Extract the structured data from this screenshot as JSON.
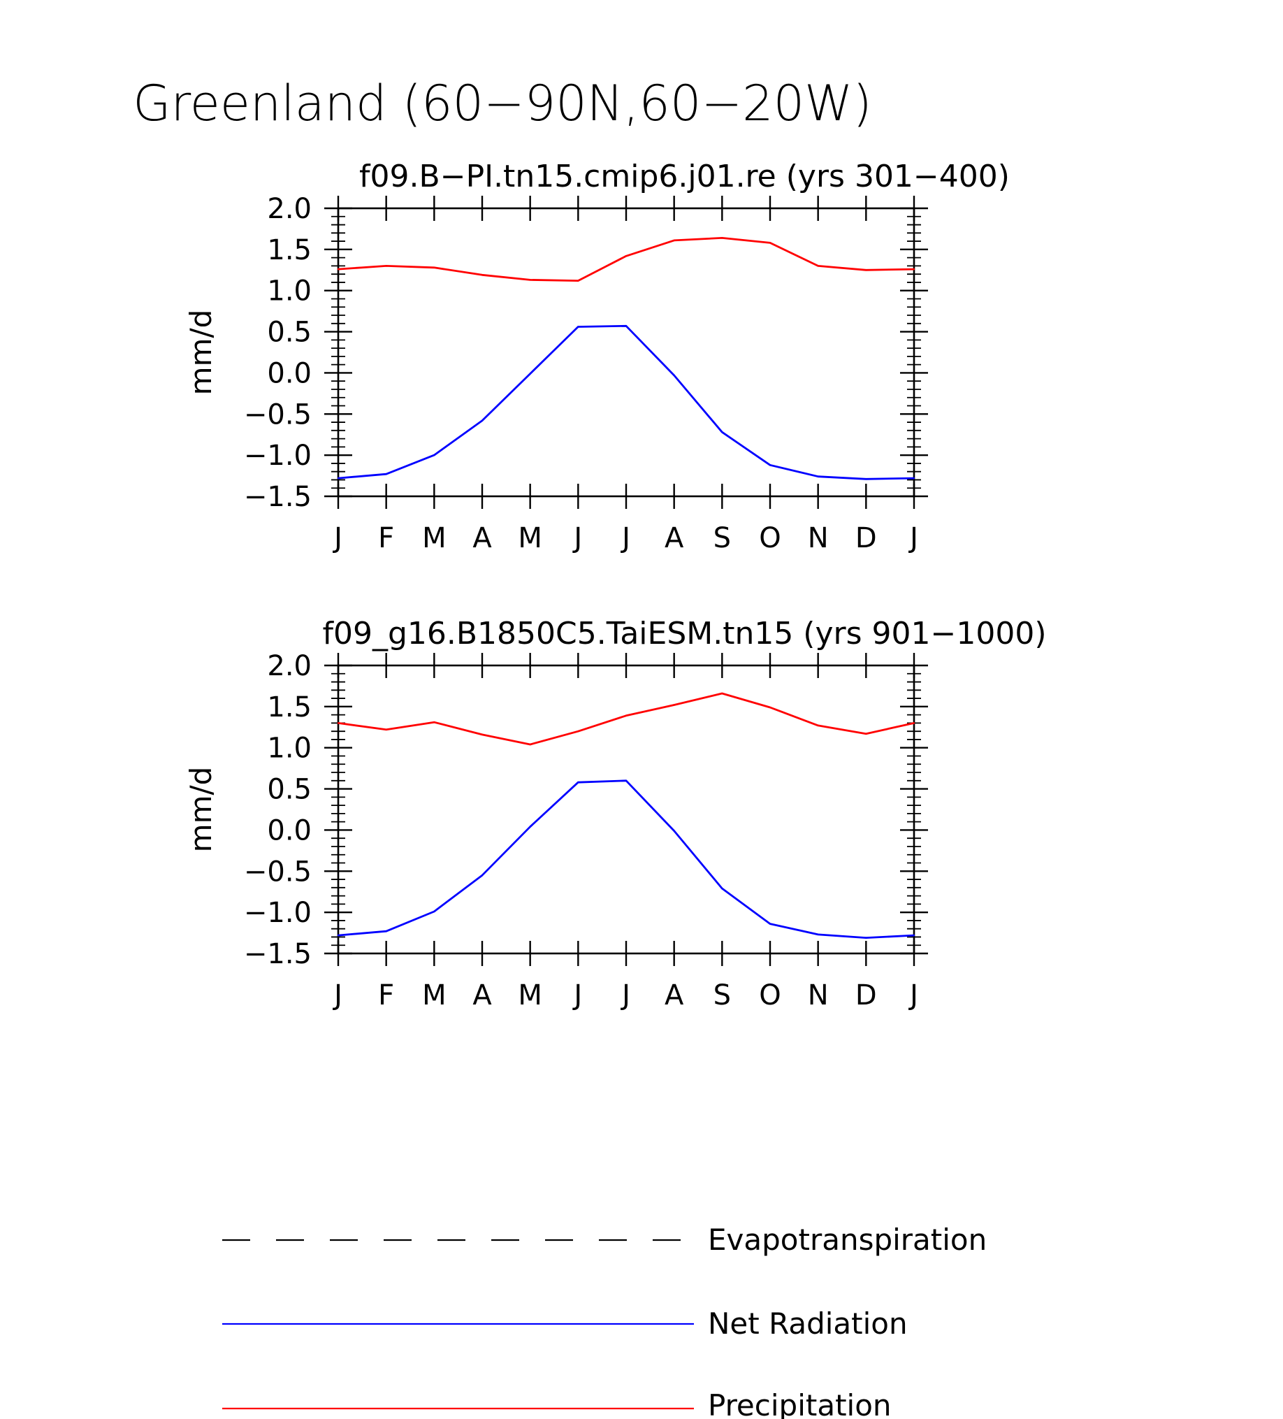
{
  "figure": {
    "title": "Greenland (60−90N,60−20W)"
  },
  "legend": {
    "items": [
      {
        "label": "Evapotranspiration",
        "color": "#000000",
        "style": "dashed"
      },
      {
        "label": "Net Radiation",
        "color": "#0000ff",
        "style": "solid"
      },
      {
        "label": "Precipitation",
        "color": "#ff0000",
        "style": "solid"
      }
    ]
  },
  "chart_data": [
    {
      "type": "line",
      "title": "f09.B−PI.tn15.cmip6.j01.re (yrs 301−400)",
      "xlabel": "",
      "ylabel": "mm/d",
      "categories": [
        "J",
        "F",
        "M",
        "A",
        "M",
        "J",
        "J",
        "A",
        "S",
        "O",
        "N",
        "D",
        "J"
      ],
      "ylim": [
        -1.5,
        2.0
      ],
      "yticks": [
        "−1.5",
        "−1.0",
        "−0.5",
        "0.0",
        "0.5",
        "1.0",
        "1.5",
        "2.0"
      ],
      "grid": false,
      "series": [
        {
          "name": "Precipitation",
          "color": "#ff0000",
          "values": [
            1.26,
            1.3,
            1.28,
            1.19,
            1.13,
            1.12,
            1.42,
            1.61,
            1.64,
            1.58,
            1.3,
            1.25,
            1.26
          ]
        },
        {
          "name": "Net Radiation",
          "color": "#0000ff",
          "values": [
            -1.28,
            -1.23,
            -1.0,
            -0.58,
            -0.01,
            0.56,
            0.57,
            -0.03,
            -0.72,
            -1.12,
            -1.26,
            -1.29,
            -1.28
          ]
        }
      ]
    },
    {
      "type": "line",
      "title": "f09_g16.B1850C5.TaiESM.tn15 (yrs 901−1000)",
      "xlabel": "",
      "ylabel": "mm/d",
      "categories": [
        "J",
        "F",
        "M",
        "A",
        "M",
        "J",
        "J",
        "A",
        "S",
        "O",
        "N",
        "D",
        "J"
      ],
      "ylim": [
        -1.5,
        2.0
      ],
      "yticks": [
        "−1.5",
        "−1.0",
        "−0.5",
        "0.0",
        "0.5",
        "1.0",
        "1.5",
        "2.0"
      ],
      "grid": false,
      "series": [
        {
          "name": "Precipitation",
          "color": "#ff0000",
          "values": [
            1.3,
            1.22,
            1.31,
            1.16,
            1.04,
            1.2,
            1.39,
            1.52,
            1.66,
            1.49,
            1.27,
            1.17,
            1.3
          ]
        },
        {
          "name": "Net Radiation",
          "color": "#0000ff",
          "values": [
            -1.28,
            -1.23,
            -0.99,
            -0.55,
            0.04,
            0.58,
            0.6,
            -0.01,
            -0.71,
            -1.14,
            -1.27,
            -1.31,
            -1.28
          ]
        }
      ]
    }
  ]
}
